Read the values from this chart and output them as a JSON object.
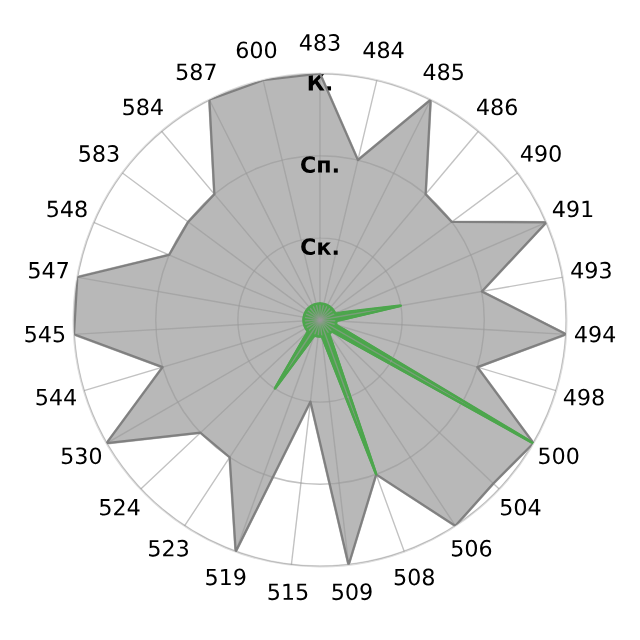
{
  "chart_data": {
    "type": "radar",
    "categories": [
      "483",
      "484",
      "485",
      "486",
      "490",
      "491",
      "493",
      "494",
      "498",
      "500",
      "504",
      "506",
      "508",
      "509",
      "515",
      "519",
      "523",
      "524",
      "530",
      "544",
      "545",
      "547",
      "548",
      "583",
      "584",
      "587",
      "600"
    ],
    "series": [
      {
        "color": "#b8b8b8",
        "values": [
          3,
          2,
          3,
          2,
          2,
          3,
          2,
          3,
          2,
          3,
          2.9,
          3,
          2,
          3,
          1,
          3,
          2,
          2,
          3,
          2,
          3,
          3,
          2,
          2,
          2,
          3,
          3
        ]
      },
      {
        "color": "#4ca64c",
        "values": [
          0.2,
          0.2,
          0.2,
          0.2,
          0.2,
          0.2,
          1,
          0.2,
          0.2,
          3,
          0.2,
          0.2,
          2,
          0.2,
          0.2,
          0.2,
          1,
          0.2,
          0.2,
          0.2,
          0.2,
          0.2,
          0.2,
          0.2,
          0.2,
          0.2,
          0.2
        ]
      }
    ],
    "ylim": [
      0,
      3
    ],
    "yticks": [
      {
        "value": 1,
        "label": "Ск."
      },
      {
        "value": 2,
        "label": "Сп."
      },
      {
        "value": 3,
        "label": "К."
      }
    ],
    "grid": true
  }
}
